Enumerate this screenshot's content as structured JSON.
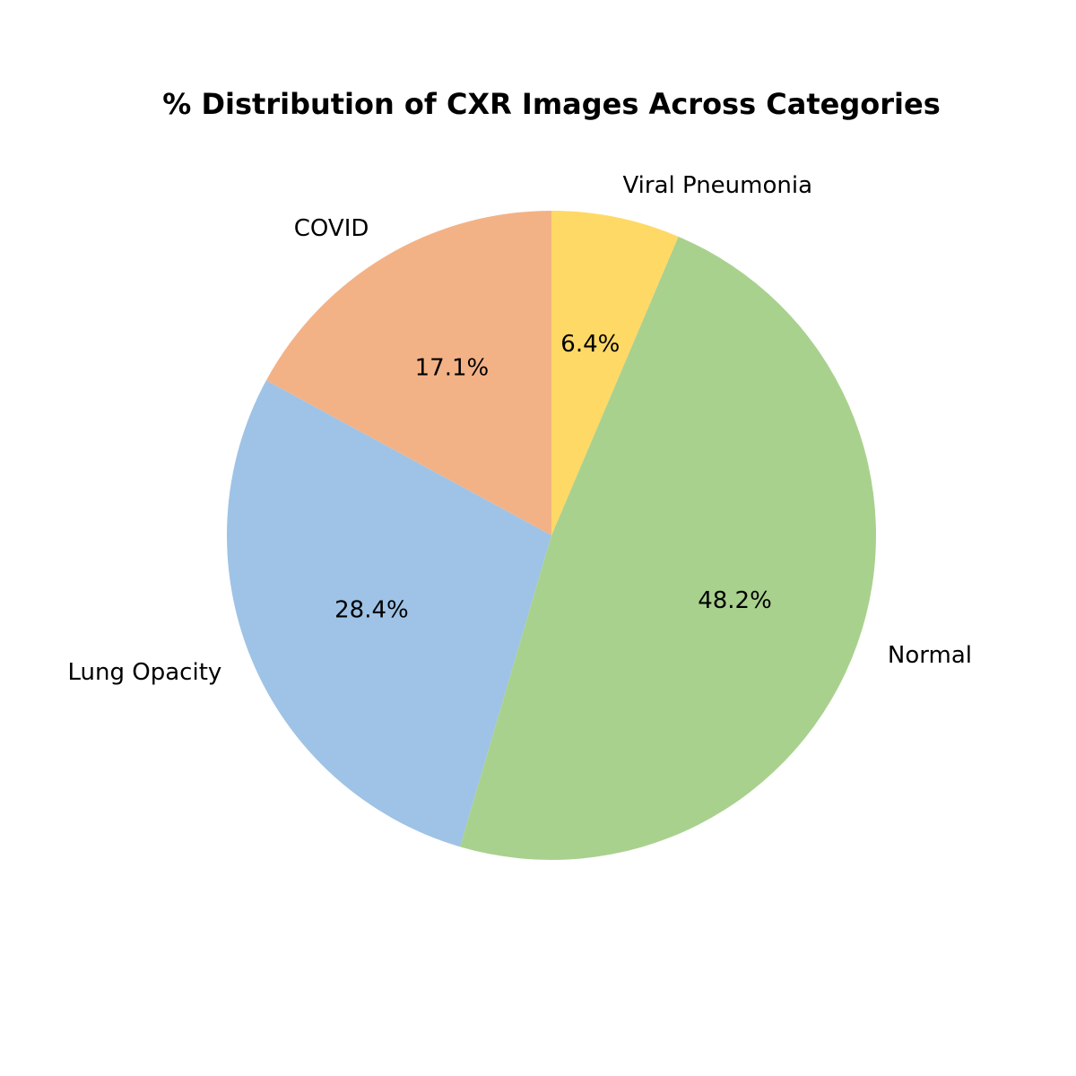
{
  "chart_data": {
    "type": "pie",
    "title": "% Distribution of CXR Images Across Categories",
    "start_angle_deg": 90,
    "direction": "counterclockwise",
    "slices": [
      {
        "label": "COVID",
        "value": 17.1,
        "pct_label": "17.1%",
        "color": "#F3B286"
      },
      {
        "label": "Lung Opacity",
        "value": 28.4,
        "pct_label": "28.4%",
        "color": "#9EC3E6"
      },
      {
        "label": "Normal",
        "value": 48.2,
        "pct_label": "48.2%",
        "color": "#A9D18E"
      },
      {
        "label": "Viral Pneumonia",
        "value": 6.4,
        "pct_label": "6.4%",
        "color": "#FFD966"
      }
    ]
  }
}
